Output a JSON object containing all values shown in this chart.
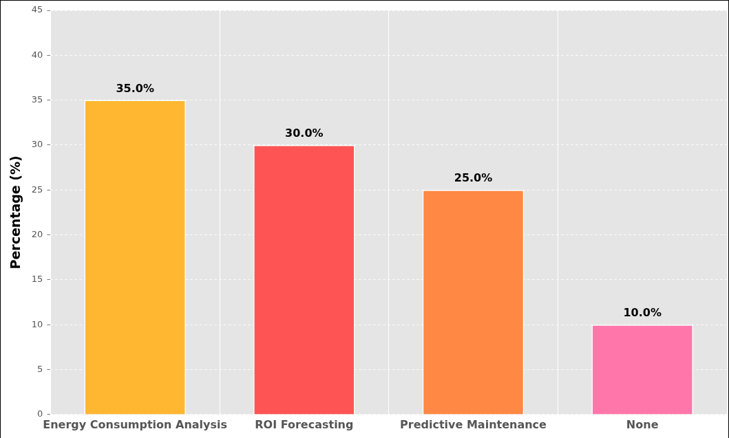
{
  "chart_data": {
    "type": "bar",
    "ylabel": "Percentage (%)",
    "categories": [
      "Energy Consumption Analysis",
      "ROI Forecasting",
      "Predictive Maintenance",
      "None"
    ],
    "values": [
      35,
      30,
      25,
      10
    ],
    "colors": [
      "#ffb732",
      "#ff5454",
      "#ff8844",
      "#ff77aa"
    ],
    "value_labels": [
      "35.0%",
      "30.0%",
      "25.0%",
      "10.0%"
    ],
    "ylim": [
      0,
      45
    ],
    "yticks": [
      0,
      5,
      10,
      15,
      20,
      25,
      30,
      35,
      40,
      45
    ],
    "grid": true,
    "legend": false
  }
}
